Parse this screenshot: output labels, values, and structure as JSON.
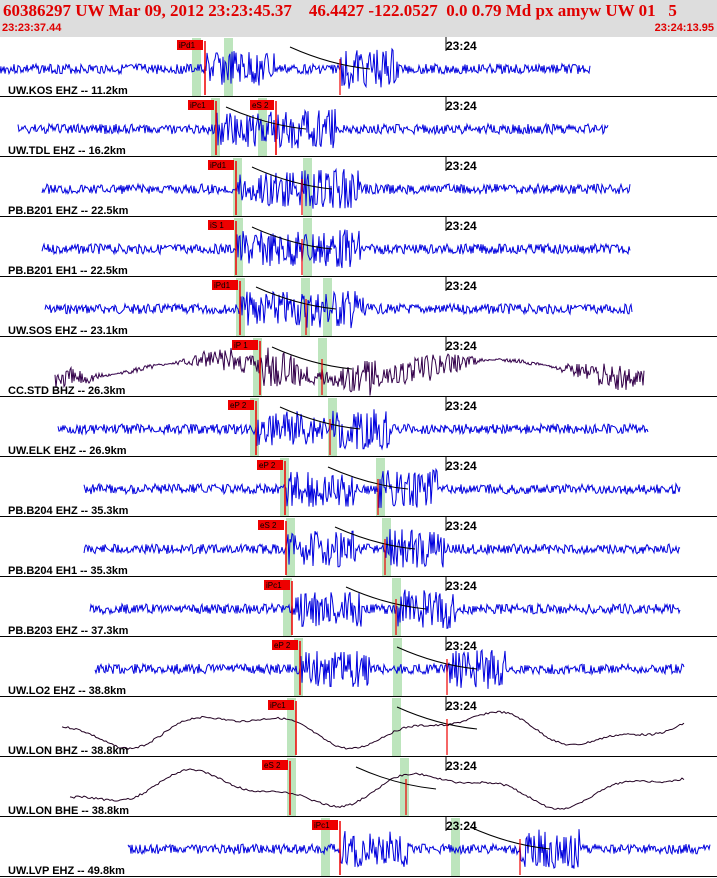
{
  "header": {
    "title": "60386297 UW Mar 09, 2012 23:23:45.37    46.4427 -122.0527  0.0 0.79 Md px amyw UW 01   5",
    "time_start": "23:23:37.44",
    "time_end": "23:24:13.95"
  },
  "colors": {
    "trace": "#0000dd",
    "trace_dark": "#33004a",
    "trace_black": "#220022",
    "pick": "#ee0000",
    "window": "#bde5bd",
    "header_text": "#e00000",
    "header_bg": "#dddddd"
  },
  "chart_data": {
    "type": "seismogram",
    "time_range": [
      "23:23:37.44",
      "23:24:13.95"
    ],
    "minute_mark_label": "23:24",
    "traces": [
      {
        "label": "UW.KOS EHZ -- 11.2km",
        "pick": "iPd1",
        "pick2": "",
        "color": "blue",
        "smooth": false
      },
      {
        "label": "UW.TDL EHZ -- 16.2km",
        "pick": "iPc1",
        "pick2": "eS 2",
        "color": "blue",
        "smooth": false
      },
      {
        "label": "PB.B201 EHZ -- 22.5km",
        "pick": "iPd1",
        "pick2": "",
        "color": "blue",
        "smooth": false
      },
      {
        "label": "PB.B201 EH1 -- 22.5km",
        "pick": "iS 1",
        "pick2": "",
        "color": "blue",
        "smooth": false
      },
      {
        "label": "UW.SOS EHZ -- 23.1km",
        "pick": "iPd1",
        "pick2": "",
        "color": "blue",
        "smooth": false
      },
      {
        "label": "CC.STD BHZ -- 26.3km",
        "pick": "iP 1",
        "pick2": "",
        "color": "dark",
        "smooth": false
      },
      {
        "label": "UW.ELK EHZ -- 26.9km",
        "pick": "eP 2",
        "pick2": "",
        "color": "blue",
        "smooth": false
      },
      {
        "label": "PB.B204 EHZ -- 35.3km",
        "pick": "eP 2",
        "pick2": "",
        "color": "blue",
        "smooth": false
      },
      {
        "label": "PB.B204 EH1 -- 35.3km",
        "pick": "eS 2",
        "pick2": "",
        "color": "blue",
        "smooth": false
      },
      {
        "label": "PB.B203 EHZ -- 37.3km",
        "pick": "iPc1",
        "pick2": "",
        "color": "blue",
        "smooth": false
      },
      {
        "label": "UW.LO2 EHZ -- 38.8km",
        "pick": "eP 2",
        "pick2": "",
        "color": "blue",
        "smooth": false
      },
      {
        "label": "UW.LON BHZ -- 38.8km",
        "pick": "iPc1",
        "pick2": "",
        "color": "black",
        "smooth": true
      },
      {
        "label": "UW.LON BHE -- 38.8km",
        "pick": "eS 2",
        "pick2": "",
        "color": "black",
        "smooth": true
      },
      {
        "label": "UW.LVP EHZ -- 49.8km",
        "pick": "iPc1",
        "pick2": "",
        "color": "blue",
        "smooth": false
      }
    ]
  }
}
